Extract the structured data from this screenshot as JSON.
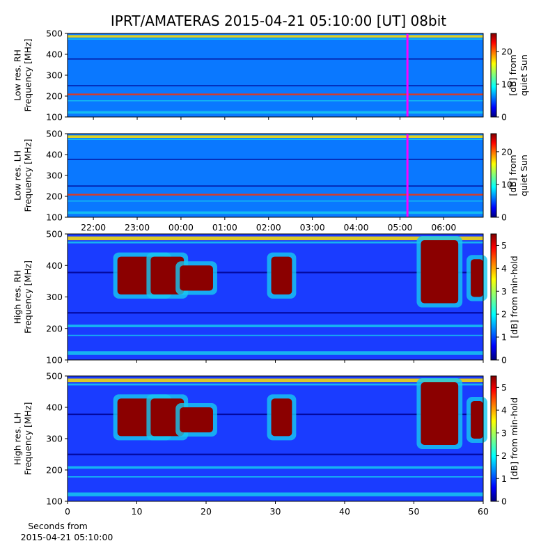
{
  "chart_data": [
    {
      "type": "heatmap",
      "title": "IPRT/AMATERAS 2015-04-21 05:10:00 [UT]   08bit",
      "ylabel": [
        "Low res. RH",
        "Frequency [MHz]"
      ],
      "ylim": [
        100,
        500
      ],
      "yticks": [
        100,
        200,
        300,
        400,
        500
      ],
      "xlim": [
        21.41,
        30.9
      ],
      "cursor": 29.17,
      "cursor_color": "#ff00ff",
      "colormap": "jet",
      "colorbar": {
        "label": [
          "[dB] from",
          "quiet Sun"
        ],
        "lim": [
          0,
          25.5
        ],
        "ticks": [
          0,
          10,
          20
        ]
      }
    },
    {
      "type": "heatmap",
      "ylabel": [
        "Low res. LH",
        "Frequency [MHz]"
      ],
      "ylim": [
        100,
        500
      ],
      "yticks": [
        100,
        200,
        300,
        400,
        500
      ],
      "xlim": [
        21.41,
        30.9
      ],
      "cursor": 29.17,
      "cursor_color": "#ff00ff",
      "colormap": "jet",
      "xticks": [
        {
          "value": 22,
          "label": "22:00"
        },
        {
          "value": 23,
          "label": "23:00"
        },
        {
          "value": 24,
          "label": "00:00"
        },
        {
          "value": 25,
          "label": "01:00"
        },
        {
          "value": 26,
          "label": "02:00"
        },
        {
          "value": 27,
          "label": "03:00"
        },
        {
          "value": 28,
          "label": "04:00"
        },
        {
          "value": 29,
          "label": "05:00"
        },
        {
          "value": 30,
          "label": "06:00"
        }
      ],
      "colorbar": {
        "label": [
          "[dB] from",
          "quiet Sun"
        ],
        "lim": [
          0,
          25.5
        ],
        "ticks": [
          0,
          10,
          20
        ]
      }
    },
    {
      "type": "heatmap",
      "ylabel": [
        "High res. RH",
        "Frequency [MHz]"
      ],
      "ylim": [
        100,
        500
      ],
      "yticks": [
        100,
        200,
        300,
        400,
        500
      ],
      "xlim": [
        0,
        60
      ],
      "colormap": "jet",
      "colorbar": {
        "label": [
          "[dB] from min-hold"
        ],
        "lim": [
          0,
          5.5
        ],
        "ticks": [
          0,
          1,
          2,
          3,
          4,
          5
        ]
      }
    },
    {
      "type": "heatmap",
      "ylabel": [
        "High res. LH",
        "Frequency [MHz]"
      ],
      "ylim": [
        100,
        500
      ],
      "yticks": [
        100,
        200,
        300,
        400,
        500
      ],
      "xlim": [
        0,
        60
      ],
      "xticks": [
        0,
        10,
        20,
        30,
        40,
        50,
        60
      ],
      "colormap": "jet",
      "xlabel": [
        "Seconds from",
        "2015-04-21 05:10:00"
      ],
      "colorbar": {
        "label": [
          "[dB] from min-hold"
        ],
        "lim": [
          0,
          5.5
        ],
        "ticks": [
          0,
          1,
          2,
          3,
          4,
          5
        ]
      }
    }
  ]
}
